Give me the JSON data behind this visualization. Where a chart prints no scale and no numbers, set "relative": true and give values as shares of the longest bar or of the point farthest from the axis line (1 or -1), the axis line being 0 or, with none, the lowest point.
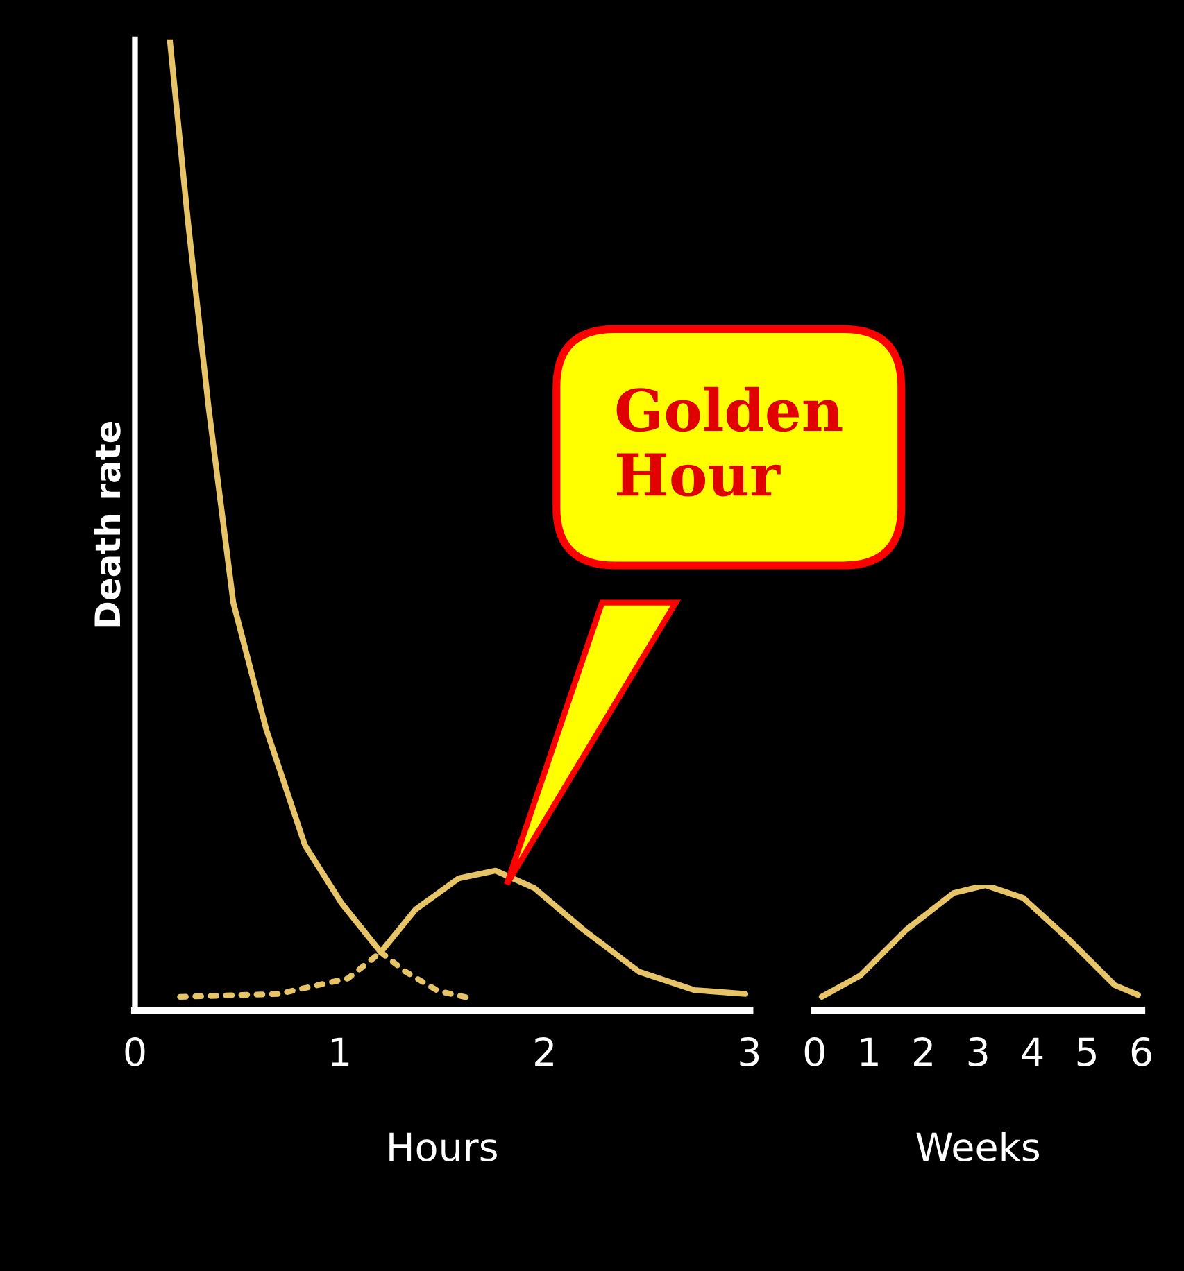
{
  "chart_data": [
    {
      "type": "line",
      "relative": true,
      "ylabel": "Death rate",
      "xlabel": "Hours",
      "xlim": [
        0,
        3
      ],
      "xticks": [
        0,
        1,
        2,
        3
      ],
      "tick_labels": "x",
      "grid": false,
      "legend": false,
      "marker": "none",
      "series": [
        {
          "color": "#e8c468",
          "line_style": "solid",
          "x": [
            0.17,
            0.26,
            0.36,
            0.48,
            0.64,
            0.83,
            1.01,
            1.2
          ],
          "values": [
            1.0,
            0.81,
            0.62,
            0.42,
            0.29,
            0.17,
            0.11,
            0.06
          ]
        },
        {
          "color": "#e8c468",
          "line_style": "dotted",
          "x": [
            1.2,
            1.32,
            1.48,
            1.63
          ],
          "values": [
            0.06,
            0.04,
            0.02,
            0.013
          ]
        },
        {
          "color": "#e8c468",
          "line_style": "dotted",
          "x": [
            0.22,
            0.7,
            1.04,
            1.2
          ],
          "values": [
            0.014,
            0.017,
            0.033,
            0.06
          ]
        },
        {
          "color": "#e8c468",
          "line_style": "solid",
          "x": [
            1.2,
            1.37,
            1.58,
            1.76,
            1.95,
            2.19,
            2.46,
            2.73,
            2.98
          ],
          "values": [
            0.06,
            0.104,
            0.136,
            0.144,
            0.126,
            0.083,
            0.04,
            0.021,
            0.017
          ]
        }
      ],
      "annotations": [
        "Golden Hour"
      ]
    },
    {
      "type": "line",
      "relative": true,
      "xlabel": "Weeks",
      "xlim": [
        0,
        6
      ],
      "xticks": [
        0,
        1,
        2,
        3,
        4,
        5,
        6
      ],
      "tick_labels": "x",
      "grid": false,
      "legend": false,
      "marker": "none",
      "series": [
        {
          "color": "#e8c468",
          "line_style": "solid",
          "x": [
            0.13,
            0.84,
            1.68,
            2.55,
            3.14,
            3.83,
            4.67,
            5.51,
            5.94
          ],
          "values": [
            0.109,
            0.279,
            0.643,
            0.938,
            1.0,
            0.899,
            0.566,
            0.202,
            0.124
          ]
        }
      ]
    }
  ]
}
